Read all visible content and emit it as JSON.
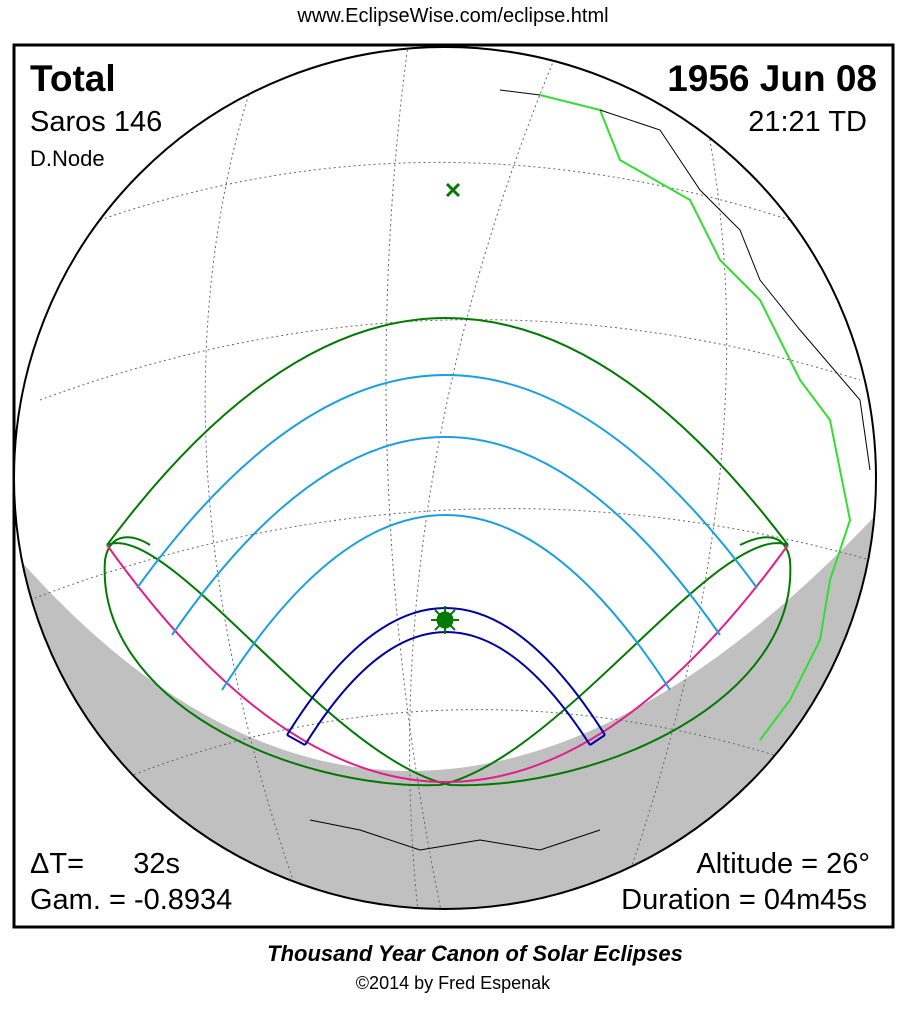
{
  "header": {
    "url": "www.EclipseWise.com/eclipse.html"
  },
  "panel": {
    "top_left": {
      "eclipse_type": "Total",
      "saros": "Saros 146",
      "node": "D.Node"
    },
    "top_right": {
      "date": "1956 Jun 08",
      "time": "21:21 TD"
    },
    "bottom_left": {
      "delta_t_label": "ΔT=",
      "delta_t_value": "32s",
      "gamma": "Gam. = -0.8934"
    },
    "bottom_right": {
      "altitude": "Altitude = 26°",
      "duration": "Duration = 04m45s"
    }
  },
  "footer": {
    "title": "Thousand Year Canon of Solar Eclipses",
    "credit": "©2014 by Fred Espenak"
  }
}
